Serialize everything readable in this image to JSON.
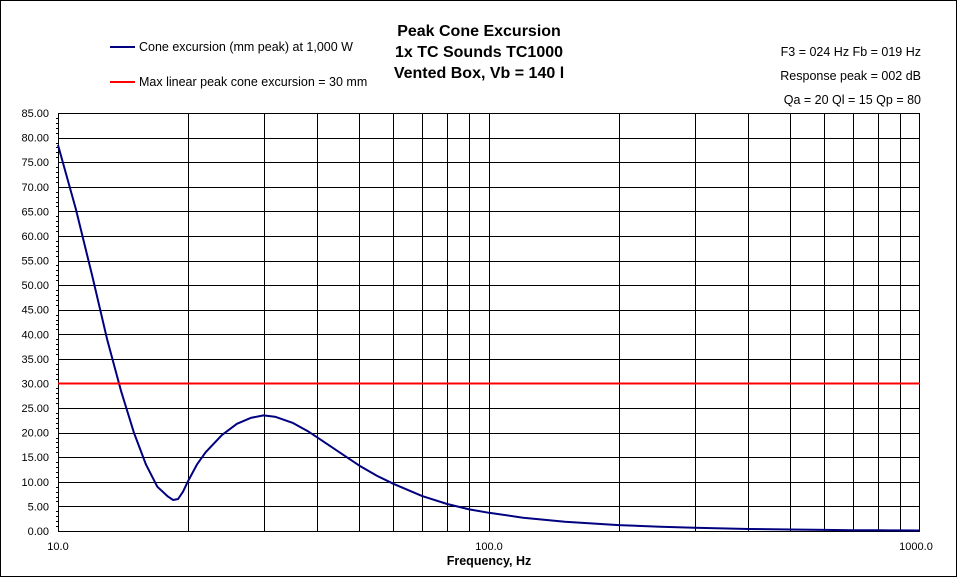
{
  "chart_data": {
    "type": "line",
    "title": [
      "Peak Cone Excursion",
      "1x TC Sounds TC1000",
      "Vented Box, Vb = 140 l"
    ],
    "annotations": [
      "F3 = 024 Hz  Fb = 019 Hz",
      "Response peak = 002 dB",
      "Qa = 20  Ql = 15  Qp = 80"
    ],
    "xlabel": "Frequency, Hz",
    "ylabel": "",
    "x_scale": "log",
    "xlim": [
      10,
      1000
    ],
    "ylim": [
      0,
      85
    ],
    "x_tick_labels": [
      "10.0",
      "100.0",
      "1000.0"
    ],
    "x_ticks": [
      10,
      100,
      1000
    ],
    "y_ticks": [
      0,
      5,
      10,
      15,
      20,
      25,
      30,
      35,
      40,
      45,
      50,
      55,
      60,
      65,
      70,
      75,
      80,
      85
    ],
    "y_tick_labels": [
      "0.00",
      "5.00",
      "10.00",
      "15.00",
      "20.00",
      "25.00",
      "30.00",
      "35.00",
      "40.00",
      "45.00",
      "50.00",
      "55.00",
      "60.00",
      "65.00",
      "70.00",
      "75.00",
      "80.00",
      "85.00"
    ],
    "grid": true,
    "legend_position": "top-left",
    "series": [
      {
        "name": "Cone excursion (mm peak) at 1,000 W",
        "color": "#000080",
        "x": [
          10,
          11,
          12,
          13,
          14,
          15,
          16,
          17,
          18,
          18.5,
          19,
          19.5,
          20,
          21,
          22,
          24,
          26,
          28,
          30,
          32,
          35,
          38,
          40,
          45,
          50,
          55,
          60,
          70,
          80,
          90,
          100,
          120,
          150,
          200,
          250,
          300,
          400,
          500,
          600,
          700,
          800,
          900,
          1000
        ],
        "y": [
          78.5,
          65.5,
          52.0,
          39.0,
          28.5,
          20.0,
          13.5,
          9.0,
          7.0,
          6.3,
          6.5,
          8.0,
          10.0,
          13.5,
          16.0,
          19.5,
          21.8,
          23.0,
          23.5,
          23.2,
          22.0,
          20.3,
          19.0,
          16.0,
          13.3,
          11.2,
          9.6,
          7.1,
          5.5,
          4.4,
          3.7,
          2.7,
          1.9,
          1.2,
          0.85,
          0.65,
          0.4,
          0.3,
          0.22,
          0.17,
          0.14,
          0.12,
          0.1
        ]
      },
      {
        "name": "Max linear peak cone excursion = 30 mm",
        "color": "#ff0000",
        "x": [
          10,
          1000
        ],
        "y": [
          30,
          30
        ]
      }
    ]
  }
}
